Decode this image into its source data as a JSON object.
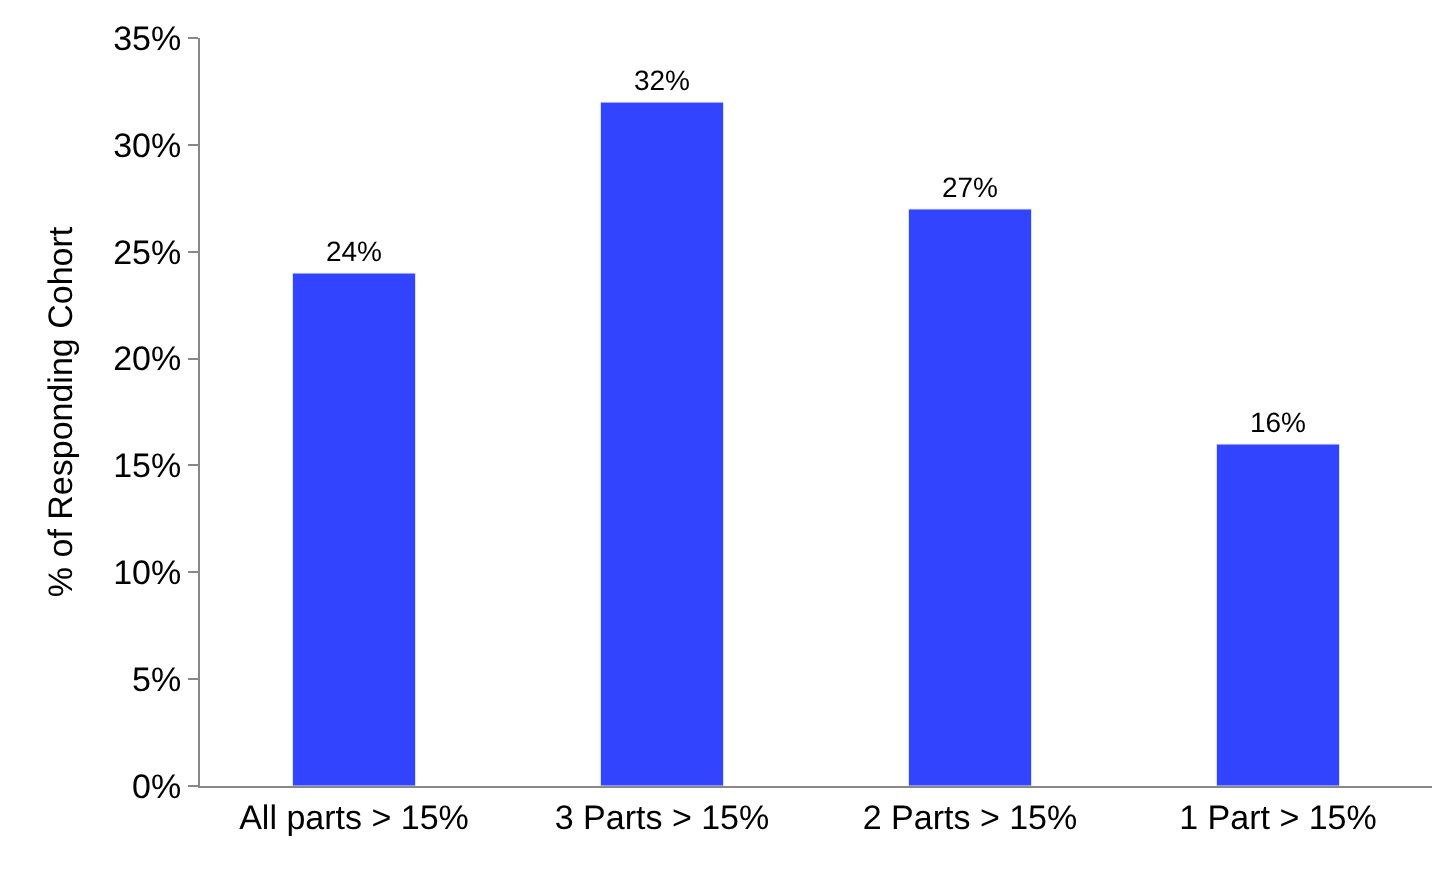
{
  "chart_data": {
    "type": "bar",
    "ylabel": "% of Responding Cohort",
    "categories": [
      "All parts > 15%",
      "3 Parts > 15%",
      "2 Parts > 15%",
      "1 Part > 15%"
    ],
    "values": [
      24,
      32,
      27,
      16
    ],
    "color": "#3344ff",
    "value_labels": [
      "24%",
      "32%",
      "27%",
      "16%"
    ],
    "ylim": [
      0,
      35
    ],
    "yticks": [
      {
        "value": 0,
        "label": "0%"
      },
      {
        "value": 5,
        "label": "5%"
      },
      {
        "value": 10,
        "label": "10%"
      },
      {
        "value": 15,
        "label": "15%"
      },
      {
        "value": 20,
        "label": "20%"
      },
      {
        "value": 25,
        "label": "25%"
      },
      {
        "value": 30,
        "label": "30%"
      },
      {
        "value": 35,
        "label": "35%"
      }
    ],
    "grid": false,
    "legend": false
  }
}
